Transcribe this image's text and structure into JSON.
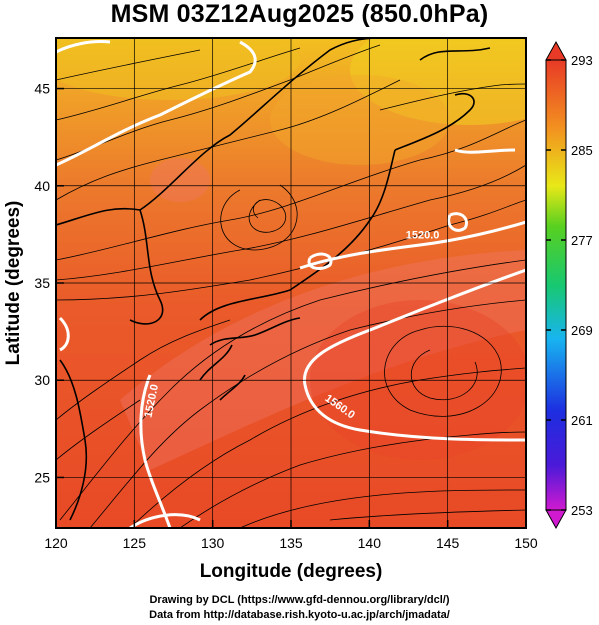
{
  "title": "MSM 03Z12Aug2025 (850.0hPa)",
  "xlabel": "Longitude (degrees)",
  "ylabel": "Latitude  (degrees)",
  "credit_line1": "Drawing by DCL (https://www.gfd-dennou.org/library/dcl/)",
  "credit_line2": "Data from http://database.rish.kyoto-u.ac.jp/arch/jmadata/",
  "chart_data": {
    "type": "heatmap",
    "field": "temperature (K) with streamlines and geopotential height contours",
    "xlim": [
      120,
      150
    ],
    "ylim": [
      22.4,
      47.6
    ],
    "x_ticks": [
      120,
      125,
      130,
      135,
      140,
      145,
      150
    ],
    "x_tick_labels": [
      "120",
      "125",
      "130",
      "135",
      "140",
      "145",
      "150"
    ],
    "y_ticks": [
      25,
      30,
      35,
      40,
      45
    ],
    "y_tick_labels": [
      "25",
      "30",
      "35",
      "40",
      "45"
    ],
    "colorbar": {
      "min": 253,
      "max": 293,
      "tick_values": [
        253,
        261,
        269,
        277,
        285,
        293
      ],
      "tick_labels": [
        "253",
        "261",
        "269",
        "277",
        "285",
        "293"
      ]
    },
    "contours": [
      {
        "level": 1520,
        "label": "1520.0",
        "label_lon": 143.4,
        "label_lat": 37.3
      },
      {
        "level": 1520,
        "label": "1520.0",
        "label_lon": 126.3,
        "label_lat": 28.9
      },
      {
        "level": 1560,
        "label": "1560.0",
        "label_lon": 138.0,
        "label_lat": 28.5
      }
    ],
    "grid": true,
    "grid_color": "#000000",
    "contour_color": "#ffffff",
    "streamline_color": "#000000"
  }
}
